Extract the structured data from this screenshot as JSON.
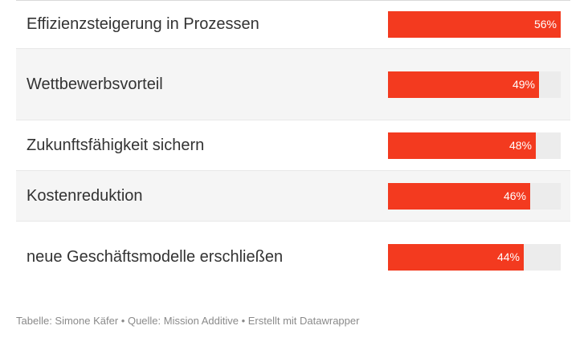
{
  "chart_data": {
    "type": "bar",
    "orientation": "horizontal",
    "categories": [
      "Effizienzsteigerung in Prozessen",
      "Wettbewerbsvorteil",
      "Zukunftsfähigkeit sichern",
      "Kostenreduktion",
      "neue Geschäftsmodelle erschließen"
    ],
    "values": [
      56,
      49,
      48,
      46,
      44
    ],
    "value_labels": [
      "56%",
      "49%",
      "48%",
      "46%",
      "44%"
    ],
    "xlim": [
      0,
      56
    ],
    "bar_color": "#f33a1f",
    "track_color": "#ececec",
    "grid": false
  },
  "footer": "Tabelle: Simone Käfer • Quelle: Mission Additive • Erstellt mit Datawrapper"
}
